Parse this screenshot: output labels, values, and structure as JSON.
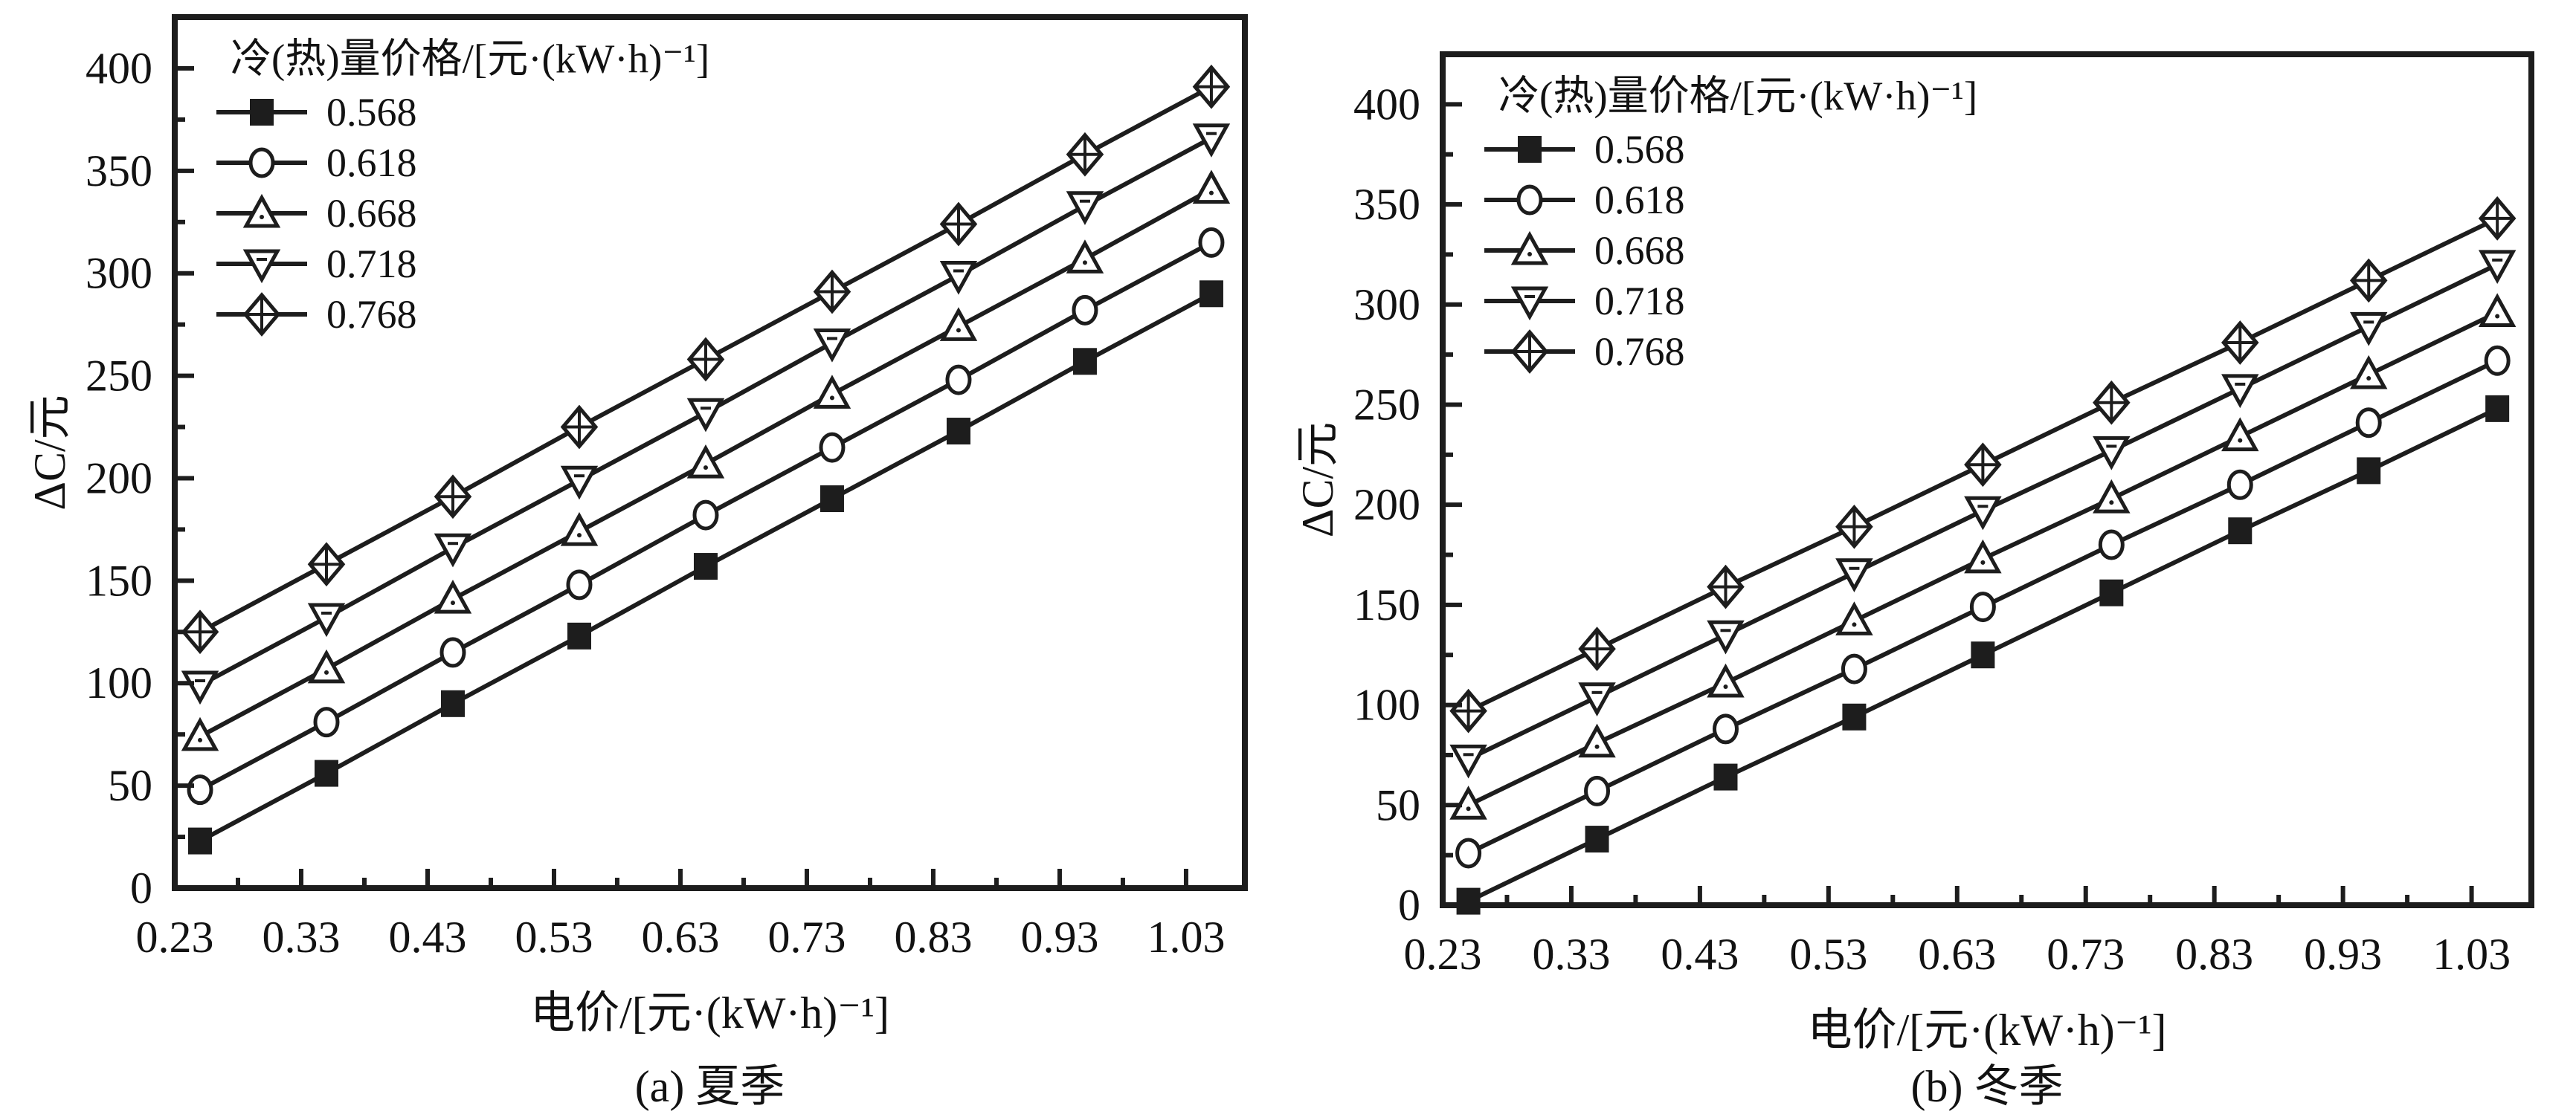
{
  "figure": {
    "background": "#ffffff",
    "ink_color": "#1d1d1d",
    "caption_a": "(a) 夏季",
    "caption_b": "(b) 冬季"
  },
  "chart_data": [
    {
      "type": "line",
      "caption": "(a) 夏季",
      "xlabel": "电价/[元·(kW·h)⁻¹]",
      "ylabel": "ΔC/元",
      "legend_title": "冷(热)量价格/[元·(kW·h)⁻¹]",
      "legend_position": "top-left",
      "grid": false,
      "xlim": [
        0.23,
        1.0765
      ],
      "ylim": [
        0,
        425
      ],
      "x_major_ticks": [
        0.23,
        0.33,
        0.43,
        0.53,
        0.63,
        0.73,
        0.83,
        0.93,
        1.03
      ],
      "x_tick_labels": [
        "0.23",
        "0.33",
        "0.43",
        "0.53",
        "0.63",
        "0.73",
        "0.83",
        "0.93",
        "1.03"
      ],
      "x_minor_ticks": [
        0.28,
        0.38,
        0.48,
        0.58,
        0.68,
        0.78,
        0.88,
        0.98
      ],
      "y_major_ticks": [
        0,
        50,
        100,
        150,
        200,
        250,
        300,
        350,
        400
      ],
      "y_tick_labels": [
        "0",
        "50",
        "100",
        "150",
        "200",
        "250",
        "300",
        "350",
        "400"
      ],
      "y_minor_ticks": [
        25,
        75,
        125,
        175,
        225,
        275,
        325,
        375
      ],
      "x": [
        0.25,
        0.35,
        0.45,
        0.55,
        0.65,
        0.75,
        0.85,
        0.95,
        1.05
      ],
      "series": [
        {
          "name": "0.568",
          "marker": "square-filled",
          "values": [
            23,
            56,
            90,
            123,
            157,
            190,
            223,
            257,
            290
          ]
        },
        {
          "name": "0.618",
          "marker": "circle-open",
          "values": [
            48,
            81,
            115,
            148,
            182,
            215,
            248,
            282,
            315
          ]
        },
        {
          "name": "0.668",
          "marker": "triangle-up-open",
          "values": [
            74,
            107,
            141,
            174,
            207,
            241,
            274,
            307,
            341
          ]
        },
        {
          "name": "0.718",
          "marker": "triangle-down-open",
          "values": [
            99,
            132,
            166,
            199,
            232,
            266,
            299,
            333,
            366
          ]
        },
        {
          "name": "0.768",
          "marker": "diamond-cross-open",
          "values": [
            125,
            158,
            191,
            225,
            258,
            291,
            324,
            358,
            391
          ]
        }
      ]
    },
    {
      "type": "line",
      "caption": "(b) 冬季",
      "xlabel": "电价/[元·(kW·h)⁻¹]",
      "ylabel": "ΔC/元",
      "legend_title": "冷(热)量价格/[元·(kW·h)⁻¹]",
      "legend_position": "top-left",
      "grid": false,
      "xlim": [
        0.23,
        1.0765
      ],
      "ylim": [
        0,
        425
      ],
      "x_major_ticks": [
        0.23,
        0.33,
        0.43,
        0.53,
        0.63,
        0.73,
        0.83,
        0.93,
        1.03
      ],
      "x_tick_labels": [
        "0.23",
        "0.33",
        "0.43",
        "0.53",
        "0.63",
        "0.73",
        "0.83",
        "0.93",
        "1.03"
      ],
      "x_minor_ticks": [
        0.28,
        0.38,
        0.48,
        0.58,
        0.68,
        0.78,
        0.88,
        0.98
      ],
      "y_major_ticks": [
        0,
        50,
        100,
        150,
        200,
        250,
        300,
        350,
        400
      ],
      "y_tick_labels": [
        "0",
        "50",
        "100",
        "150",
        "200",
        "250",
        "300",
        "350",
        "400"
      ],
      "y_minor_ticks": [
        25,
        75,
        125,
        175,
        225,
        275,
        325,
        375
      ],
      "x": [
        0.25,
        0.35,
        0.45,
        0.55,
        0.65,
        0.75,
        0.85,
        0.95,
        1.05
      ],
      "series": [
        {
          "name": "0.568",
          "marker": "square-filled",
          "values": [
            2,
            33,
            64,
            94,
            125,
            156,
            187,
            217,
            248
          ]
        },
        {
          "name": "0.618",
          "marker": "circle-open",
          "values": [
            26,
            57,
            88,
            118,
            149,
            180,
            210,
            241,
            272
          ]
        },
        {
          "name": "0.668",
          "marker": "triangle-up-open",
          "values": [
            50,
            81,
            111,
            142,
            173,
            203,
            234,
            265,
            296
          ]
        },
        {
          "name": "0.718",
          "marker": "triangle-down-open",
          "values": [
            73,
            104,
            135,
            166,
            197,
            227,
            258,
            289,
            320
          ]
        },
        {
          "name": "0.768",
          "marker": "diamond-cross-open",
          "values": [
            97,
            128,
            159,
            189,
            220,
            251,
            281,
            312,
            343
          ]
        }
      ]
    }
  ]
}
